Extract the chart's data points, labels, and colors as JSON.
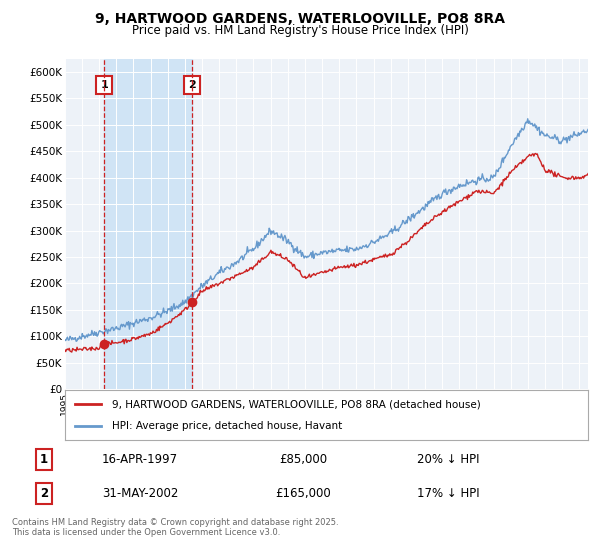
{
  "title_line1": "9, HARTWOOD GARDENS, WATERLOOVILLE, PO8 8RA",
  "title_line2": "Price paid vs. HM Land Registry's House Price Index (HPI)",
  "ylabel_ticks": [
    "£0",
    "£50K",
    "£100K",
    "£150K",
    "£200K",
    "£250K",
    "£300K",
    "£350K",
    "£400K",
    "£450K",
    "£500K",
    "£550K",
    "£600K"
  ],
  "ytick_values": [
    0,
    50000,
    100000,
    150000,
    200000,
    250000,
    300000,
    350000,
    400000,
    450000,
    500000,
    550000,
    600000
  ],
  "ylim": [
    0,
    625000
  ],
  "xlim_start": 1995.0,
  "xlim_end": 2025.5,
  "sale1_date": 1997.29,
  "sale1_price": 85000,
  "sale1_label": "1",
  "sale2_date": 2002.42,
  "sale2_price": 165000,
  "sale2_label": "2",
  "hpi_color": "#6699cc",
  "price_color": "#cc2222",
  "vline_color": "#cc2222",
  "shade_color": "#d0e4f5",
  "legend_line1": "9, HARTWOOD GARDENS, WATERLOOVILLE, PO8 8RA (detached house)",
  "legend_line2": "HPI: Average price, detached house, Havant",
  "table_row1": [
    "1",
    "16-APR-1997",
    "£85,000",
    "20% ↓ HPI"
  ],
  "table_row2": [
    "2",
    "31-MAY-2002",
    "£165,000",
    "17% ↓ HPI"
  ],
  "footnote": "Contains HM Land Registry data © Crown copyright and database right 2025.\nThis data is licensed under the Open Government Licence v3.0.",
  "background_color": "#ffffff",
  "plot_bg_color": "#edf2f8"
}
